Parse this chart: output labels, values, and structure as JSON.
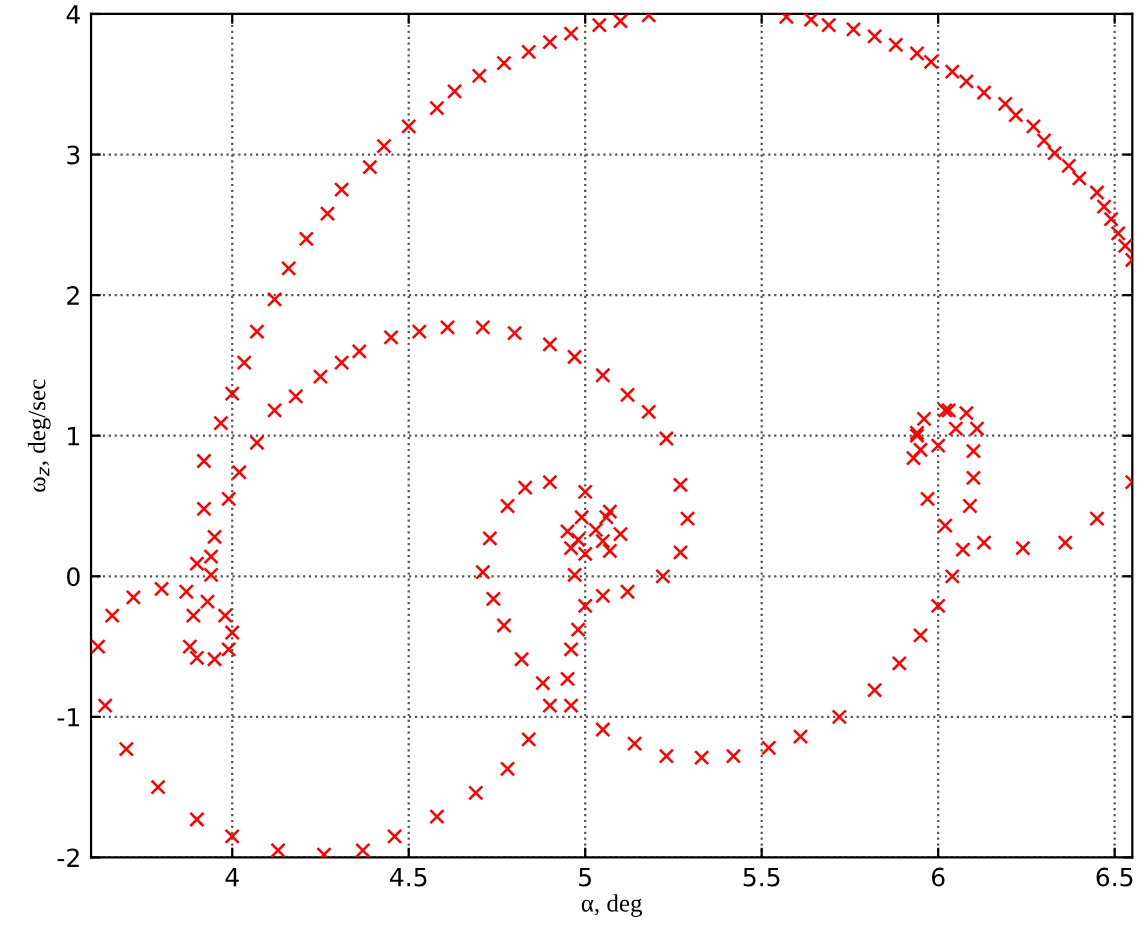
{
  "chart_data": {
    "type": "scatter",
    "xlabel": "α, deg",
    "ylabel": "ω$_{z}$, deg/sec",
    "xlim": [
      3.6,
      6.55
    ],
    "ylim": [
      -2,
      4
    ],
    "xticks": [
      4,
      4.5,
      5,
      5.5,
      6,
      6.5
    ],
    "yticks": [
      -2,
      -1,
      0,
      1,
      2,
      3,
      4
    ],
    "grid": true,
    "marker": "cross",
    "series": [
      {
        "color": "#ff0000",
        "x": [
          3.89,
          3.94,
          3.9,
          3.94,
          3.95,
          3.92,
          3.92,
          3.968,
          4.0,
          4.034,
          4.07,
          4.12,
          4.16,
          4.21,
          4.27,
          4.31,
          4.39,
          4.43,
          4.5,
          4.58,
          4.63,
          4.7,
          4.77,
          4.84,
          4.9,
          4.96,
          5.04,
          5.1,
          5.18,
          5.57,
          5.64,
          5.69,
          5.76,
          5.82,
          5.88,
          5.94,
          5.98,
          6.04,
          6.08,
          6.13,
          6.19,
          6.22,
          6.27,
          6.3,
          6.33,
          6.37,
          6.4,
          6.45,
          6.47,
          6.49,
          6.51,
          6.53,
          6.55
        ],
        "values": [
          -0.28,
          0.01,
          0.09,
          0.14,
          0.28,
          0.48,
          0.82,
          1.09,
          1.3,
          1.52,
          1.74,
          1.97,
          2.19,
          2.4,
          2.58,
          2.75,
          2.91,
          3.06,
          3.2,
          3.33,
          3.45,
          3.56,
          3.65,
          3.73,
          3.8,
          3.86,
          3.92,
          3.95,
          3.99,
          3.98,
          3.96,
          3.92,
          3.89,
          3.84,
          3.78,
          3.72,
          3.66,
          3.59,
          3.52,
          3.44,
          3.36,
          3.28,
          3.2,
          3.1,
          3.01,
          2.92,
          2.83,
          2.73,
          2.63,
          2.54,
          2.44,
          2.35,
          2.25
        ]
      },
      {
        "color": "#ff0000",
        "x": [
          3.88,
          3.9,
          3.95,
          3.99,
          4.0,
          3.98,
          3.93,
          3.87,
          3.8,
          3.72,
          3.66,
          3.62,
          3.64,
          3.7,
          3.79,
          3.9,
          4.0,
          4.13,
          4.26,
          4.37,
          4.46,
          4.58,
          4.69,
          4.78,
          4.84,
          4.9,
          4.95,
          4.96,
          4.98,
          5.0
        ],
        "values": [
          -0.5,
          -0.58,
          -0.59,
          -0.52,
          -0.4,
          -0.28,
          -0.18,
          -0.11,
          -0.09,
          -0.15,
          -0.28,
          -0.5,
          -0.92,
          -1.23,
          -1.5,
          -1.73,
          -1.85,
          -1.95,
          -1.98,
          -1.95,
          -1.85,
          -1.71,
          -1.54,
          -1.37,
          -1.16,
          -0.92,
          -0.73,
          -0.52,
          -0.38,
          -0.21
        ]
      },
      {
        "color": "#ff0000",
        "x": [
          3.99,
          4.02,
          4.07,
          4.12,
          4.18,
          4.25,
          4.31,
          4.36,
          4.45,
          4.53,
          4.61,
          4.71,
          4.8,
          4.9,
          4.97,
          5.05,
          5.12,
          5.18,
          5.23,
          5.27,
          5.29,
          5.27,
          5.22,
          5.12,
          5.05,
          4.97,
          4.96,
          4.95,
          4.99,
          5.06,
          5.1,
          5.07,
          5.0,
          4.98,
          5.03,
          5.05
        ],
        "values": [
          0.55,
          0.74,
          0.95,
          1.18,
          1.28,
          1.42,
          1.52,
          1.6,
          1.7,
          1.74,
          1.77,
          1.77,
          1.73,
          1.65,
          1.56,
          1.43,
          1.29,
          1.17,
          0.98,
          0.65,
          0.41,
          0.17,
          0.0,
          -0.11,
          -0.14,
          0.01,
          0.2,
          0.32,
          0.42,
          0.42,
          0.3,
          0.18,
          0.16,
          0.26,
          0.33,
          0.25
        ]
      },
      {
        "color": "#ff0000",
        "x": [
          5.07,
          5.0,
          4.9,
          4.83,
          4.78,
          4.73,
          4.71,
          4.74,
          4.77,
          4.82,
          4.88,
          4.96,
          5.05,
          5.14,
          5.23,
          5.33,
          5.42,
          5.52,
          5.61,
          5.72,
          5.82,
          5.89,
          5.95,
          6.0,
          6.04,
          6.07,
          6.09,
          6.1,
          6.1,
          6.11,
          6.08,
          6.02,
          5.96,
          5.94,
          5.95,
          6.0,
          6.05
        ],
        "values": [
          0.46,
          0.6,
          0.67,
          0.63,
          0.5,
          0.27,
          0.03,
          -0.16,
          -0.35,
          -0.59,
          -0.76,
          -0.92,
          -1.09,
          -1.19,
          -1.28,
          -1.29,
          -1.28,
          -1.22,
          -1.14,
          -1.0,
          -0.81,
          -0.62,
          -0.42,
          -0.21,
          0.0,
          0.19,
          0.5,
          0.7,
          0.89,
          1.05,
          1.16,
          1.18,
          1.12,
          1.0,
          0.9,
          0.93,
          1.05
        ]
      },
      {
        "color": "#ff0000",
        "x": [
          6.03,
          5.94,
          5.93,
          5.97,
          6.02,
          6.13,
          6.24,
          6.36,
          6.45,
          6.55
        ],
        "values": [
          1.18,
          1.02,
          0.84,
          0.55,
          0.36,
          0.24,
          0.2,
          0.24,
          0.41,
          0.67
        ]
      }
    ]
  }
}
